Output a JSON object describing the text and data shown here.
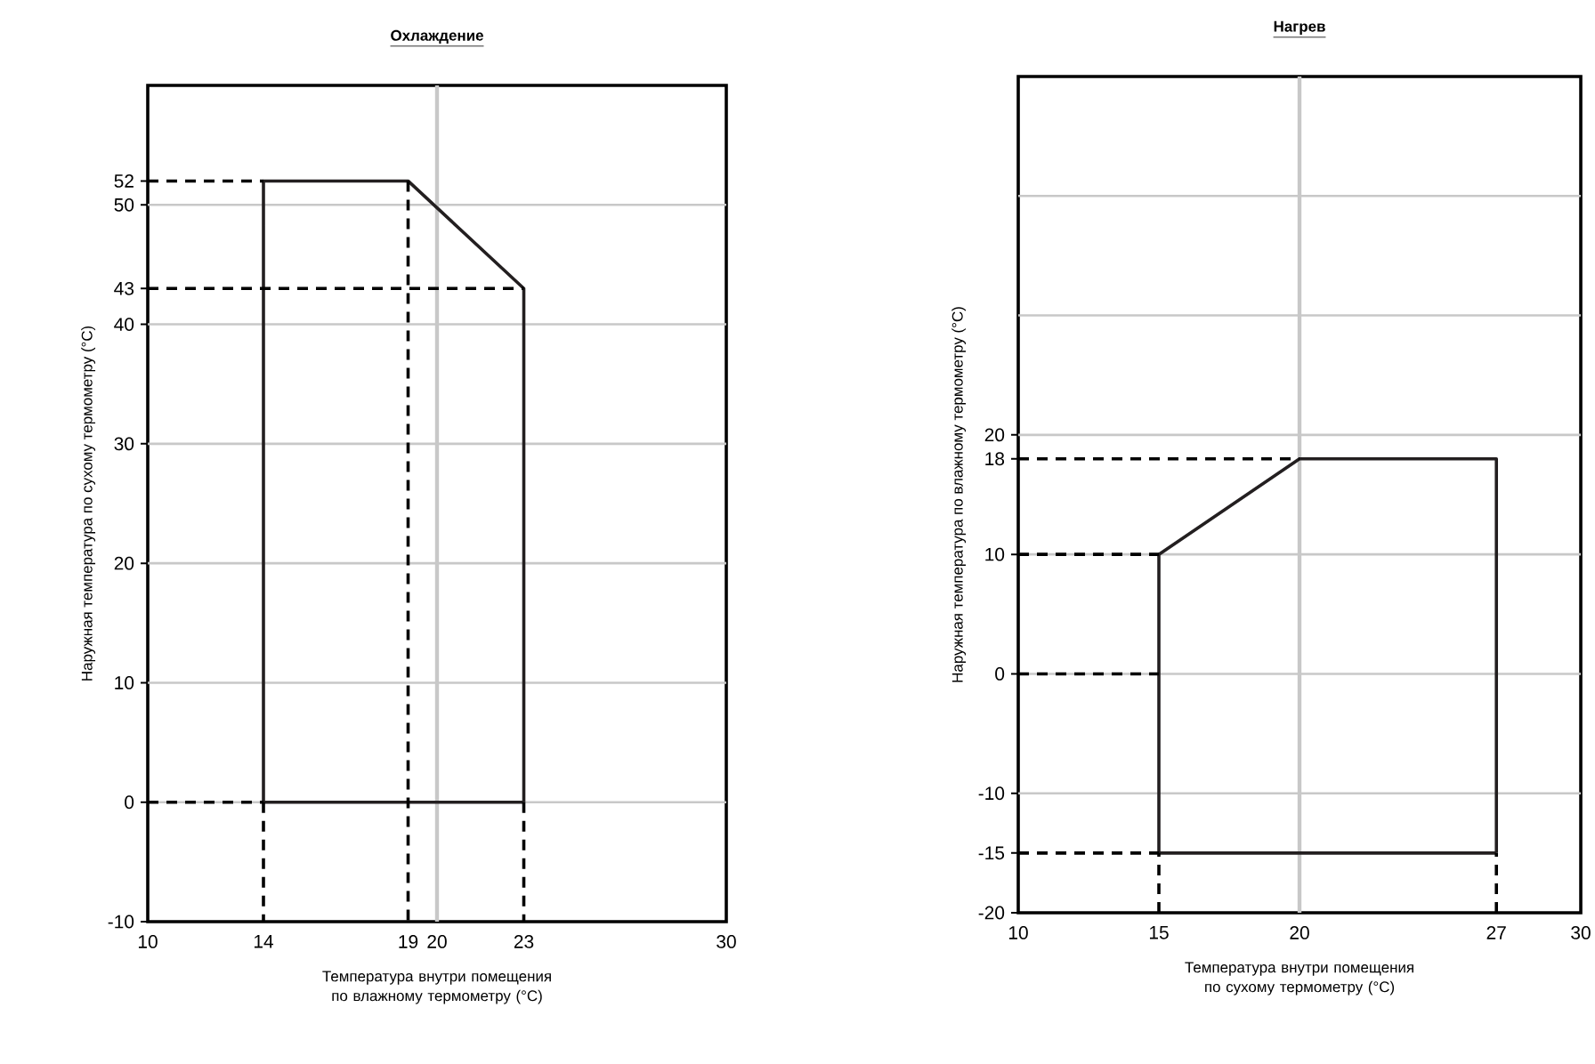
{
  "chart_data": [
    {
      "type": "line",
      "title": "Охлаждение",
      "xlabel": "Температура внутри помещения по влажному термометру (°C)",
      "ylabel": "Наружная температура по сухому термометру (°C)",
      "xlim": [
        10,
        30
      ],
      "ylim": [
        -10,
        60
      ],
      "xticks": [
        10,
        14,
        19,
        20,
        23,
        30
      ],
      "yticks": [
        -10,
        0,
        10,
        20,
        30,
        40,
        43,
        50,
        52
      ],
      "ref_lines": [
        {
          "axis": "y",
          "value": 0,
          "color": "#c8c8c8"
        },
        {
          "axis": "y",
          "value": 10,
          "color": "#c8c8c8"
        },
        {
          "axis": "y",
          "value": 20,
          "color": "#c8c8c8"
        },
        {
          "axis": "y",
          "value": 30,
          "color": "#c8c8c8"
        },
        {
          "axis": "y",
          "value": 40,
          "color": "#c8c8c8"
        },
        {
          "axis": "y",
          "value": 50,
          "color": "#c8c8c8"
        },
        {
          "axis": "x",
          "value": 20,
          "color": "#c8c8c8"
        }
      ],
      "series": [
        {
          "color": "#231f20",
          "line_style": "solid",
          "x": [
            14,
            14,
            19,
            23,
            23
          ],
          "values": [
            0,
            52,
            52,
            43,
            0
          ]
        },
        {
          "color": "#231f20",
          "line_style": "solid",
          "x": [
            14,
            23
          ],
          "values": [
            0,
            0
          ]
        },
        {
          "color": "#000000",
          "line_style": "dashed",
          "x": [
            10,
            14
          ],
          "values": [
            52,
            52
          ]
        },
        {
          "color": "#000000",
          "line_style": "dashed",
          "x": [
            10,
            23
          ],
          "values": [
            43,
            43
          ]
        },
        {
          "color": "#000000",
          "line_style": "dashed",
          "x": [
            10,
            14
          ],
          "values": [
            0,
            0
          ]
        },
        {
          "color": "#000000",
          "line_style": "dashed",
          "x": [
            14,
            14
          ],
          "values": [
            0,
            -10
          ]
        },
        {
          "color": "#000000",
          "line_style": "dashed",
          "x": [
            19,
            19
          ],
          "values": [
            52,
            -10
          ]
        },
        {
          "color": "#000000",
          "line_style": "dashed",
          "x": [
            23,
            23
          ],
          "values": [
            0,
            -10
          ]
        }
      ]
    },
    {
      "type": "line",
      "title": "Нагрев",
      "xlabel": "Температура внутри помещения по сухому термометру (°C)",
      "ylabel": "Наружная температура по влажному термометру (°C)",
      "xlim": [
        10,
        30
      ],
      "ylim": [
        -20,
        50
      ],
      "xticks": [
        10,
        15,
        20,
        27,
        30
      ],
      "yticks": [
        -20,
        -15,
        -10,
        0,
        10,
        18,
        20
      ],
      "ref_lines": [
        {
          "axis": "y",
          "value": -10,
          "color": "#c8c8c8"
        },
        {
          "axis": "y",
          "value": 0,
          "color": "#c8c8c8"
        },
        {
          "axis": "y",
          "value": 10,
          "color": "#c8c8c8"
        },
        {
          "axis": "y",
          "value": 20,
          "color": "#c8c8c8"
        },
        {
          "axis": "y",
          "value": 30,
          "color": "#c8c8c8"
        },
        {
          "axis": "y",
          "value": 40,
          "color": "#c8c8c8"
        },
        {
          "axis": "x",
          "value": 20,
          "color": "#c8c8c8"
        }
      ],
      "series": [
        {
          "color": "#231f20",
          "line_style": "solid",
          "x": [
            15,
            15,
            20,
            27,
            27
          ],
          "values": [
            -15,
            10,
            18,
            18,
            -15
          ]
        },
        {
          "color": "#231f20",
          "line_style": "solid",
          "x": [
            15,
            27
          ],
          "values": [
            -15,
            -15
          ]
        },
        {
          "color": "#000000",
          "line_style": "dashed",
          "x": [
            10,
            20
          ],
          "values": [
            18,
            18
          ]
        },
        {
          "color": "#000000",
          "line_style": "dashed",
          "x": [
            10,
            15
          ],
          "values": [
            10,
            10
          ]
        },
        {
          "color": "#000000",
          "line_style": "dashed",
          "x": [
            10,
            15
          ],
          "values": [
            0,
            0
          ]
        },
        {
          "color": "#000000",
          "line_style": "dashed",
          "x": [
            10,
            15
          ],
          "values": [
            -15,
            -15
          ]
        },
        {
          "color": "#000000",
          "line_style": "dashed",
          "x": [
            15,
            15
          ],
          "values": [
            -20,
            -15
          ]
        },
        {
          "color": "#000000",
          "line_style": "dashed",
          "x": [
            27,
            27
          ],
          "values": [
            -20,
            -15
          ]
        }
      ]
    }
  ]
}
